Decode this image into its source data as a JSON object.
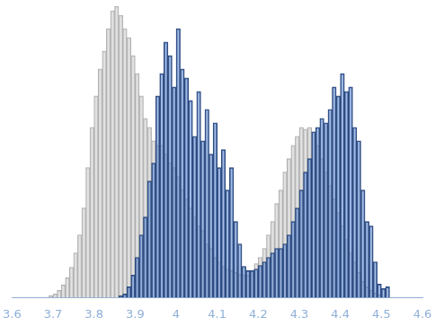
{
  "chart_data": {
    "type": "histogram",
    "bins": [
      3.69,
      3.7,
      3.71,
      3.72,
      3.73,
      3.74,
      3.75,
      3.76,
      3.77,
      3.78,
      3.79,
      3.8,
      3.81,
      3.82,
      3.83,
      3.84,
      3.85,
      3.86,
      3.87,
      3.88,
      3.89,
      3.9,
      3.91,
      3.92,
      3.93,
      3.94,
      3.95,
      3.96,
      3.97,
      3.98,
      3.99,
      4.0,
      4.01,
      4.02,
      4.03,
      4.04,
      4.05,
      4.06,
      4.07,
      4.08,
      4.09,
      4.1,
      4.11,
      4.12,
      4.13,
      4.14,
      4.15,
      4.16,
      4.17,
      4.18,
      4.19,
      4.2,
      4.21,
      4.22,
      4.23,
      4.24,
      4.25,
      4.26,
      4.27,
      4.28,
      4.29,
      4.3,
      4.31,
      4.32,
      4.33,
      4.34,
      4.35,
      4.36,
      4.37,
      4.38,
      4.39,
      4.4,
      4.41,
      4.42,
      4.43,
      4.44,
      4.45,
      4.46,
      4.47,
      4.48,
      4.49,
      4.5,
      4.51,
      4.52
    ],
    "series": [
      {
        "color": "#d9d9d9",
        "values": [
          2,
          4,
          8,
          14,
          22,
          34,
          50,
          70,
          100,
          145,
          190,
          225,
          255,
          275,
          300,
          320,
          325,
          315,
          300,
          290,
          270,
          250,
          225,
          200,
          190,
          175,
          170,
          170,
          160,
          150,
          145,
          135,
          120,
          110,
          100,
          90,
          80,
          75,
          60,
          55,
          45,
          40,
          35,
          32,
          30,
          28,
          26,
          25,
          25,
          30,
          38,
          45,
          55,
          70,
          85,
          105,
          120,
          140,
          155,
          170,
          180,
          190,
          188,
          190,
          185,
          170,
          155,
          140,
          125,
          110,
          95,
          80,
          65,
          50,
          40,
          28,
          18,
          12,
          8,
          5,
          3,
          0,
          0
        ]
      },
      {
        "color": "#4a78c8",
        "values": [
          0,
          0,
          0,
          0,
          0,
          0,
          0,
          0,
          0,
          0,
          0,
          0,
          0,
          0,
          0,
          0,
          0,
          2,
          4,
          12,
          25,
          45,
          70,
          90,
          130,
          150,
          225,
          250,
          285,
          270,
          235,
          300,
          255,
          245,
          220,
          180,
          230,
          175,
          210,
          160,
          195,
          145,
          165,
          120,
          145,
          85,
          60,
          35,
          30,
          30,
          32,
          36,
          40,
          45,
          50,
          55,
          55,
          60,
          70,
          85,
          100,
          120,
          140,
          155,
          185,
          190,
          200,
          195,
          210,
          235,
          225,
          250,
          230,
          235,
          190,
          175,
          120,
          85,
          80,
          40,
          15,
          10,
          12
        ]
      }
    ],
    "xlim": [
      3.6,
      4.6
    ],
    "xticks": [
      3.6,
      3.7,
      3.8,
      3.9,
      4,
      4.1,
      4.2,
      4.3,
      4.4,
      4.5,
      4.6
    ],
    "ylim": [
      0,
      330
    ],
    "grid": false,
    "tick_labels": "x"
  }
}
